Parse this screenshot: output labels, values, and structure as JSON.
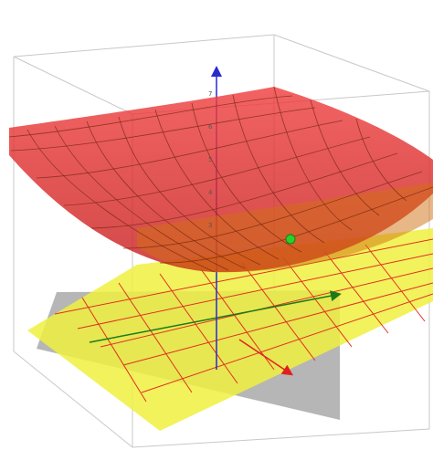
{
  "axes": {
    "z_labels": [
      "7",
      "6",
      "5",
      "4",
      "3"
    ]
  }
}
